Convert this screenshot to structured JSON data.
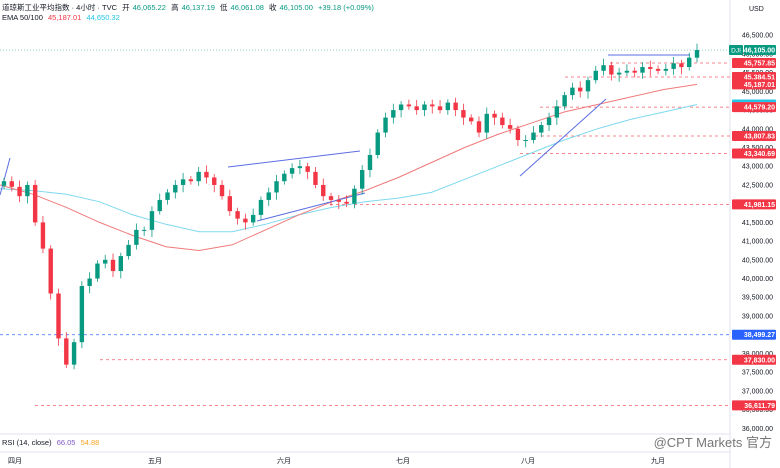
{
  "header": {
    "symbol": "道琼斯工业平均指数 · 4小时 · TVC",
    "open_label": "开",
    "open": "46,065.22",
    "high_label": "高",
    "high": "46,137.19",
    "low_label": "低",
    "low": "46,061.08",
    "close_label": "收",
    "close": "46,105.00",
    "change": "+39.18 (+0.09%)",
    "ema_label": "EMA 50/100",
    "ema50": "45,187.01",
    "ema100": "44,650.32"
  },
  "rsi": {
    "label": "RSI (14, close)",
    "value1": "66.05",
    "value2": "54.88"
  },
  "watermark": "@CPT Markets 官方",
  "colors": {
    "up": "#089981",
    "down": "#f23645",
    "ema50": "#f07a7a",
    "ema100": "#7fd8ef",
    "trend": "#5b6ee1",
    "blue_level": "#2962ff"
  },
  "chart_data": {
    "type": "candlestick",
    "currency": "USD",
    "y_axis_ticks": [
      36000,
      36500,
      37000,
      37500,
      38000,
      38500,
      39000,
      39500,
      40000,
      40500,
      41000,
      41500,
      42000,
      42500,
      43000,
      43500,
      44000,
      44500,
      45000,
      45500,
      46000,
      46500
    ],
    "y_axis_labels": [
      "36,000.00",
      "36,500.00",
      "37,000.00",
      "37,500.00",
      "38,000.00",
      "38,500.00",
      "39,000.00",
      "39,500.00",
      "40,000.00",
      "40,500.00",
      "41,000.00",
      "41,500.00",
      "42,000.00",
      "42,500.00",
      "43,000.00",
      "43,500.00",
      "44,000.00",
      "44,500.00",
      "45,000.00",
      "45,500.00",
      "46,000.00",
      "46,500.00"
    ],
    "ylim": [
      35900,
      46800
    ],
    "x_axis_labels": [
      "四月",
      "五月",
      "六月",
      "七月",
      "八月",
      "九月"
    ],
    "price_tags": [
      {
        "label": "DJI",
        "value": 46105.0,
        "text": "46,105.00",
        "color": "#089981"
      },
      {
        "value": 45757.85,
        "text": "45,757.85",
        "color": "#f23645"
      },
      {
        "value": 45384.51,
        "text": "45,384.51",
        "color": "#f23645"
      },
      {
        "value": 45187.01,
        "text": "45,187.01",
        "color": "#f23645"
      },
      {
        "value": 44650.32,
        "text": "44,650.32",
        "color": "#22c5e8"
      },
      {
        "value": 44579.2,
        "text": "44,579.20",
        "color": "#f23645"
      },
      {
        "value": 43807.83,
        "text": "43,807.83",
        "color": "#f23645"
      },
      {
        "value": 43340.69,
        "text": "43,340.69",
        "color": "#f23645"
      },
      {
        "value": 41981.15,
        "text": "41,981.15",
        "color": "#f23645"
      },
      {
        "value": 38499.27,
        "text": "38,499.27",
        "color": "#2962ff"
      },
      {
        "value": 37830.0,
        "text": "37,830.00",
        "color": "#f23645"
      },
      {
        "value": 36611.79,
        "text": "36,611.79",
        "color": "#f23645"
      }
    ],
    "ema50_series": [
      42500,
      42250,
      41900,
      41500,
      41150,
      40850,
      40750,
      40900,
      41300,
      41700,
      42050,
      42350,
      42700,
      43100,
      43500,
      43850,
      44150,
      44450,
      44650,
      44850,
      45050,
      45187
    ],
    "ema100_series": [
      42400,
      42350,
      42250,
      42050,
      41700,
      41450,
      41250,
      41250,
      41450,
      41700,
      41900,
      42050,
      42150,
      42300,
      42650,
      43000,
      43350,
      43700,
      44000,
      44250,
      44450,
      44650
    ],
    "candles_approx_close": [
      42600,
      42450,
      42200,
      42500,
      41500,
      40800,
      39600,
      38400,
      37700,
      38300,
      39800,
      40000,
      40400,
      40500,
      40200,
      40600,
      40900,
      41300,
      41300,
      41800,
      42100,
      42300,
      42500,
      42650,
      42600,
      42850,
      42700,
      42500,
      42200,
      41800,
      41600,
      41500,
      41700,
      42100,
      42300,
      42600,
      42800,
      42950,
      43000,
      42850,
      42500,
      42200,
      42100,
      42050,
      42000,
      42400,
      42900,
      43300,
      43900,
      44300,
      44500,
      44650,
      44600,
      44500,
      44650,
      44600,
      44500,
      44700,
      44500,
      44300,
      44200,
      43900,
      44400,
      44300,
      44100,
      44000,
      43700,
      43700,
      43900,
      44100,
      44300,
      44600,
      44900,
      45100,
      45000,
      45300,
      45550,
      45700,
      45450,
      45500,
      45550,
      45500,
      45650,
      45600,
      45550,
      45600,
      45750,
      45650,
      45900,
      46105
    ]
  }
}
